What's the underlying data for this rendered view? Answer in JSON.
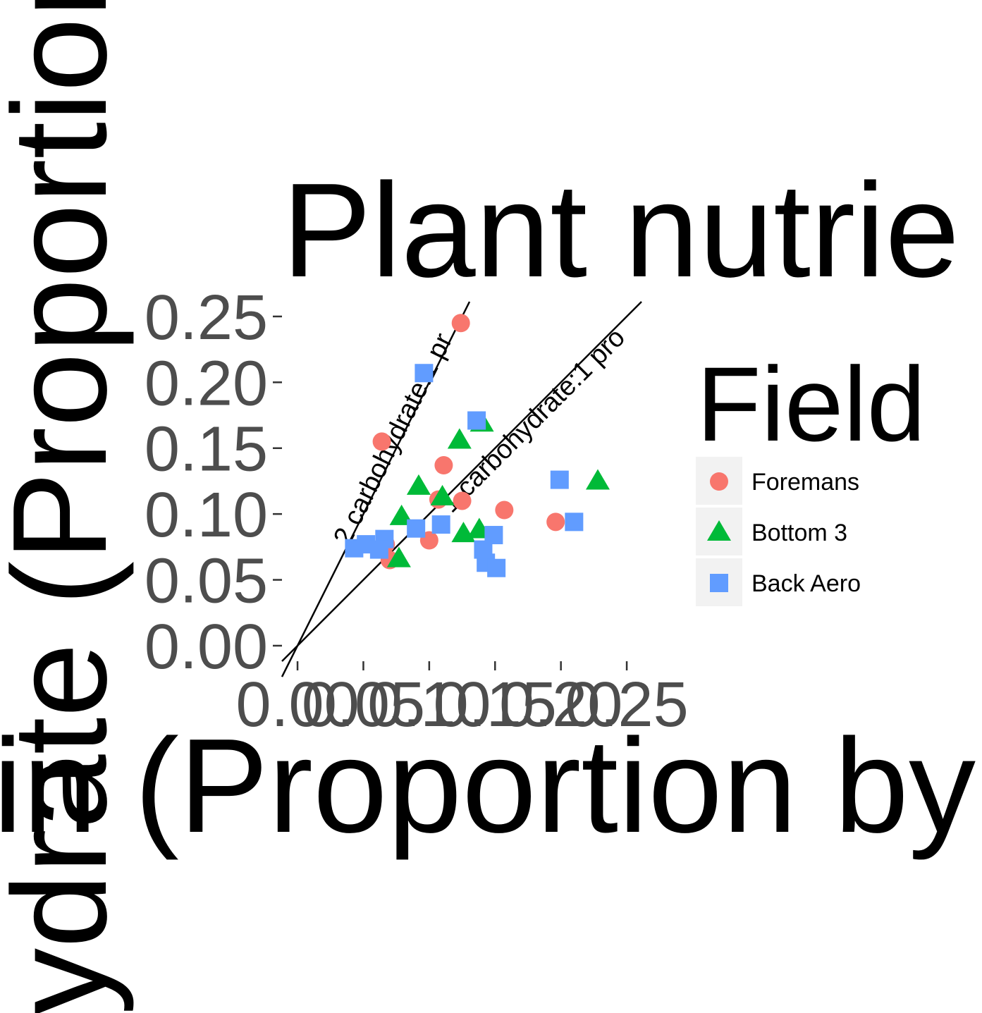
{
  "chart_data": {
    "type": "scatter",
    "title": "Plant nutrie",
    "x_label": "in (Proportion by m",
    "y_label": "ydrate (Proportion b",
    "legend_title": "Field",
    "xlim": [
      -0.0118,
      0.2612
    ],
    "ylim": [
      -0.0118,
      0.2612
    ],
    "xticks": [
      {
        "value": 0,
        "label": "0.00"
      },
      {
        "value": 0.05,
        "label": "0.05"
      },
      {
        "value": 0.1,
        "label": "0.10"
      },
      {
        "value": 0.15,
        "label": "0.15"
      },
      {
        "value": 0.2,
        "label": "0.20"
      },
      {
        "value": 0.25,
        "label": "0.25"
      }
    ],
    "yticks": [
      {
        "value": 0,
        "label": "0.00"
      },
      {
        "value": 0.05,
        "label": "0.05"
      },
      {
        "value": 0.1,
        "label": "0.10"
      },
      {
        "value": 0.15,
        "label": "0.15"
      },
      {
        "value": 0.2,
        "label": "0.20"
      },
      {
        "value": 0.25,
        "label": "0.25"
      }
    ],
    "reference_lines": [
      {
        "label": "2 carbohydrate:1 pr",
        "slope": 2,
        "label_x": 0.039,
        "label_y": 0.075
      },
      {
        "label": "1 carbohydrate:1 pro",
        "slope": 1,
        "label_x": 0.117,
        "label_y": 0.1
      }
    ],
    "series": [
      {
        "name": "Foremans",
        "color": "#f8766d",
        "shape": "circle",
        "x": [
          0.124,
          0.064,
          0.111,
          0.125,
          0.107,
          0.157,
          0.196,
          0.1,
          0.067,
          0.07
        ],
        "values": [
          0.245,
          0.155,
          0.137,
          0.11,
          0.111,
          0.103,
          0.094,
          0.08,
          0.077,
          0.065
        ]
      },
      {
        "name": "Bottom 3",
        "color": "#00ba38",
        "shape": "triangle",
        "x": [
          0.14,
          0.123,
          0.092,
          0.11,
          0.079,
          0.138,
          0.126,
          0.077,
          0.228
        ],
        "values": [
          0.169,
          0.156,
          0.121,
          0.113,
          0.098,
          0.088,
          0.085,
          0.066,
          0.125
        ]
      },
      {
        "name": "Back Aero",
        "color": "#619cff",
        "shape": "square",
        "x": [
          0.096,
          0.136,
          0.199,
          0.21,
          0.109,
          0.09,
          0.066,
          0.149,
          0.141,
          0.143,
          0.151,
          0.043,
          0.052,
          0.062
        ],
        "values": [
          0.207,
          0.171,
          0.126,
          0.094,
          0.092,
          0.089,
          0.081,
          0.084,
          0.073,
          0.063,
          0.059,
          0.074,
          0.077,
          0.073
        ]
      }
    ]
  }
}
